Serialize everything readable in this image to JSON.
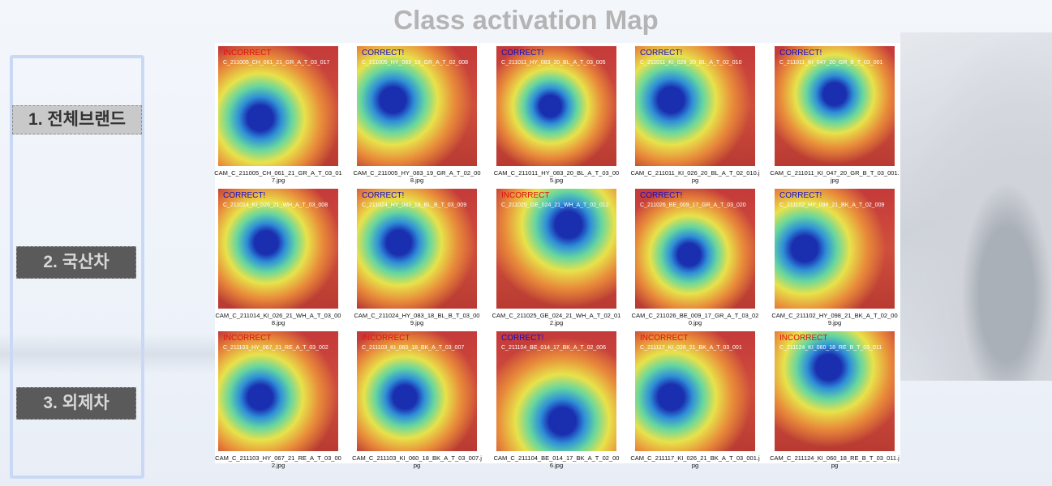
{
  "header": {
    "title": "Class activation Map"
  },
  "menu": [
    "1. 전체브랜드",
    "2. 국산차",
    "3. 외제차"
  ],
  "grid": [
    {
      "status": "INCORRECT",
      "name": "C_211005_CH_061_21_GR_A_T_03_017",
      "caption": "CAM_C_211005_CH_061_21_GR_A_T_03_017.jpg"
    },
    {
      "status": "CORRECT!",
      "name": "C_211005_HY_083_19_GR_A_T_02_008",
      "caption": "CAM_C_211005_HY_083_19_GR_A_T_02_008.jpg"
    },
    {
      "status": "CORRECT!",
      "name": "C_211011_HY_083_20_BL_A_T_03_005",
      "caption": "CAM_C_211011_HY_083_20_BL_A_T_03_005.jpg"
    },
    {
      "status": "CORRECT!",
      "name": "C_211011_KI_026_20_BL_A_T_02_010",
      "caption": "CAM_C_211011_KI_026_20_BL_A_T_02_010.jpg"
    },
    {
      "status": "CORRECT!",
      "name": "C_211011_KI_047_20_GR_B_T_03_001",
      "caption": "CAM_C_211011_KI_047_20_GR_B_T_03_001.jpg"
    },
    {
      "status": "CORRECT!",
      "name": "C_211014_KI_026_21_WH_A_T_03_008",
      "caption": "CAM_C_211014_KI_026_21_WH_A_T_03_008.jpg"
    },
    {
      "status": "CORRECT!",
      "name": "C_211024_HY_083_18_BL_B_T_03_009",
      "caption": "CAM_C_211024_HY_083_18_BL_B_T_03_009.jpg"
    },
    {
      "status": "INCORRECT",
      "name": "C_211025_GE_024_21_WH_A_T_02_012",
      "caption": "CAM_C_211025_GE_024_21_WH_A_T_02_012.jpg"
    },
    {
      "status": "CORRECT!",
      "name": "C_211026_BE_009_17_GR_A_T_03_020",
      "caption": "CAM_C_211026_BE_009_17_GR_A_T_03_020.jpg"
    },
    {
      "status": "CORRECT!",
      "name": "C_211102_HY_098_21_BK_A_T_02_009",
      "caption": "CAM_C_211102_HY_098_21_BK_A_T_02_009.jpg"
    },
    {
      "status": "INCORRECT",
      "name": "C_211103_HY_067_21_RE_A_T_03_002",
      "caption": "CAM_C_211103_HY_067_21_RE_A_T_03_002.jpg"
    },
    {
      "status": "INCORRECT",
      "name": "C_211103_KI_060_18_BK_A_T_03_007",
      "caption": "CAM_C_211103_KI_060_18_BK_A_T_03_007.jpg"
    },
    {
      "status": "CORRECT!",
      "name": "C_211104_BE_014_17_BK_A_T_02_006",
      "caption": "CAM_C_211104_BE_014_17_BK_A_T_02_006.jpg"
    },
    {
      "status": "INCORRECT",
      "name": "C_211117_KI_026_21_BK_A_T_03_001",
      "caption": "CAM_C_211117_KI_026_21_BK_A_T_03_001.jpg"
    },
    {
      "status": "INCORRECT",
      "name": "C_211124_KI_060_18_RE_B_T_03_011",
      "caption": "CAM_C_211124_KI_060_18_RE_B_T_03_011.jpg"
    }
  ]
}
